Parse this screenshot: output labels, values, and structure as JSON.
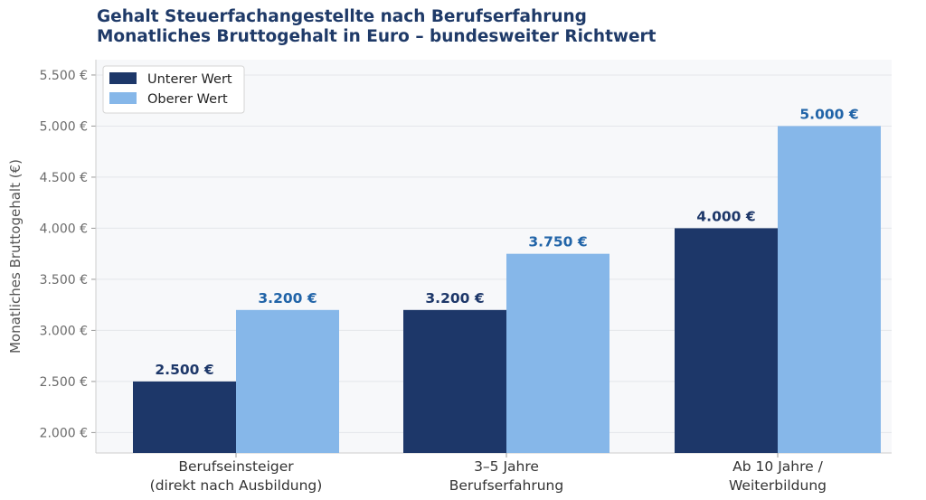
{
  "chart_data": {
    "type": "bar",
    "title": "Gehalt Steuerfachangestellte nach Berufserfahrung",
    "subtitle": "Monatliches Bruttogehalt in Euro – bundesweiter Richtwert",
    "ylabel": "Monatliches Bruttogehalt (€)",
    "xlabel": "",
    "ylim": [
      1800,
      5650
    ],
    "yticks": [
      2000,
      2500,
      3000,
      3500,
      4000,
      4500,
      5000,
      5500
    ],
    "ytick_labels": [
      "2.000 €",
      "2.500 €",
      "3.000 €",
      "3.500 €",
      "4.000 €",
      "4.500 €",
      "5.000 €",
      "5.500 €"
    ],
    "grid": true,
    "legend_position": "top-left",
    "categories": [
      [
        "Berufseinsteiger",
        "(direkt nach Ausbildung)"
      ],
      [
        "3–5 Jahre",
        "Berufserfahrung"
      ],
      [
        "Ab 10 Jahre /",
        "Weiterbildung"
      ]
    ],
    "series": [
      {
        "name": "Unterer Wert",
        "color": "#1d3769",
        "label_color": "#1d3769",
        "values": [
          2500,
          3200,
          4000
        ],
        "labels": [
          "2.500 €",
          "3.200 €",
          "4.000 €"
        ]
      },
      {
        "name": "Oberer Wert",
        "color": "#86b7e9",
        "label_color": "#2164a8",
        "values": [
          3200,
          3750,
          5000
        ],
        "labels": [
          "3.200 €",
          "3.750 €",
          "5.000 €"
        ]
      }
    ],
    "colors": {
      "plot_background": "#f7f8fa",
      "grid": "#e4e6ea",
      "title": "#1f3a68"
    }
  }
}
